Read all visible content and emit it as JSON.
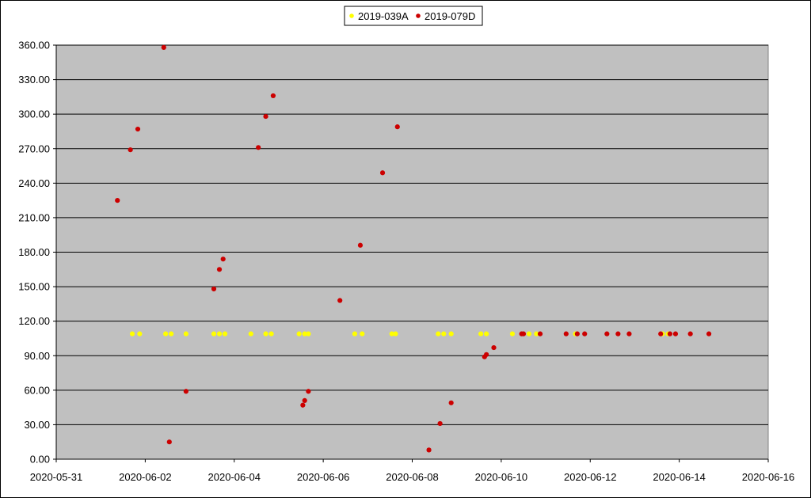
{
  "chart_data": {
    "type": "scatter",
    "title": "",
    "xlabel": "",
    "ylabel": "",
    "x_axis": {
      "min": "2020-05-31",
      "max": "2020-06-16",
      "tick_labels": [
        "2020-05-31",
        "2020-06-02",
        "2020-06-04",
        "2020-06-06",
        "2020-06-08",
        "2020-06-10",
        "2020-06-12",
        "2020-06-14",
        "2020-06-16"
      ]
    },
    "y_axis": {
      "min": 0,
      "max": 360,
      "tick_labels": [
        "0.00",
        "30.00",
        "60.00",
        "90.00",
        "120.00",
        "150.00",
        "180.00",
        "210.00",
        "240.00",
        "270.00",
        "300.00",
        "330.00",
        "360.00"
      ]
    },
    "grid": "horizontal",
    "plot_background": "#c0c0c0",
    "legend_position": "top-center",
    "series": [
      {
        "name": "2019-039A",
        "color": "#ffff00",
        "points": [
          {
            "x": "2020-06-01 17:00",
            "y": 109
          },
          {
            "x": "2020-06-01 21:00",
            "y": 109
          },
          {
            "x": "2020-06-02 11:00",
            "y": 109
          },
          {
            "x": "2020-06-02 14:00",
            "y": 109
          },
          {
            "x": "2020-06-02 22:00",
            "y": 109
          },
          {
            "x": "2020-06-03 13:00",
            "y": 109
          },
          {
            "x": "2020-06-03 16:00",
            "y": 109
          },
          {
            "x": "2020-06-03 19:00",
            "y": 109
          },
          {
            "x": "2020-06-04 09:00",
            "y": 109
          },
          {
            "x": "2020-06-04 17:00",
            "y": 109
          },
          {
            "x": "2020-06-04 20:00",
            "y": 109
          },
          {
            "x": "2020-06-05 11:00",
            "y": 109
          },
          {
            "x": "2020-06-05 14:00",
            "y": 109
          },
          {
            "x": "2020-06-05 16:00",
            "y": 109
          },
          {
            "x": "2020-06-06 17:00",
            "y": 109
          },
          {
            "x": "2020-06-06 21:00",
            "y": 109
          },
          {
            "x": "2020-06-07 13:00",
            "y": 109
          },
          {
            "x": "2020-06-07 15:00",
            "y": 109
          },
          {
            "x": "2020-06-08 14:00",
            "y": 109
          },
          {
            "x": "2020-06-08 17:00",
            "y": 109
          },
          {
            "x": "2020-06-08 21:00",
            "y": 109
          },
          {
            "x": "2020-06-09 13:00",
            "y": 109
          },
          {
            "x": "2020-06-09 16:00",
            "y": 109
          },
          {
            "x": "2020-06-10 06:00",
            "y": 109
          },
          {
            "x": "2020-06-10 15:00",
            "y": 109
          },
          {
            "x": "2020-06-10 19:00",
            "y": 109
          },
          {
            "x": "2020-06-11 16:00",
            "y": 109
          },
          {
            "x": "2020-06-13 15:00",
            "y": 109
          },
          {
            "x": "2020-06-13 18:00",
            "y": 109
          }
        ]
      },
      {
        "name": "2019-079D",
        "color": "#cc0000",
        "points": [
          {
            "x": "2020-06-01 09:00",
            "y": 225
          },
          {
            "x": "2020-06-01 16:00",
            "y": 269
          },
          {
            "x": "2020-06-01 20:00",
            "y": 287
          },
          {
            "x": "2020-06-02 10:00",
            "y": 358
          },
          {
            "x": "2020-06-02 13:00",
            "y": 15
          },
          {
            "x": "2020-06-02 22:00",
            "y": 59
          },
          {
            "x": "2020-06-03 13:00",
            "y": 148
          },
          {
            "x": "2020-06-03 16:00",
            "y": 165
          },
          {
            "x": "2020-06-03 18:00",
            "y": 174
          },
          {
            "x": "2020-06-04 13:00",
            "y": 271
          },
          {
            "x": "2020-06-04 17:00",
            "y": 298
          },
          {
            "x": "2020-06-04 21:00",
            "y": 316
          },
          {
            "x": "2020-06-05 13:00",
            "y": 47
          },
          {
            "x": "2020-06-05 14:00",
            "y": 51
          },
          {
            "x": "2020-06-05 16:00",
            "y": 59
          },
          {
            "x": "2020-06-06 09:00",
            "y": 138
          },
          {
            "x": "2020-06-06 20:00",
            "y": 186
          },
          {
            "x": "2020-06-07 08:00",
            "y": 249
          },
          {
            "x": "2020-06-07 16:00",
            "y": 289
          },
          {
            "x": "2020-06-08 09:00",
            "y": 8
          },
          {
            "x": "2020-06-08 15:00",
            "y": 31
          },
          {
            "x": "2020-06-08 21:00",
            "y": 49
          },
          {
            "x": "2020-06-09 15:00",
            "y": 89
          },
          {
            "x": "2020-06-09 16:00",
            "y": 91
          },
          {
            "x": "2020-06-09 20:00",
            "y": 97
          },
          {
            "x": "2020-06-10 11:00",
            "y": 109
          },
          {
            "x": "2020-06-10 12:00",
            "y": 109
          },
          {
            "x": "2020-06-10 21:00",
            "y": 109
          },
          {
            "x": "2020-06-11 11:00",
            "y": 109
          },
          {
            "x": "2020-06-11 17:00",
            "y": 109
          },
          {
            "x": "2020-06-11 21:00",
            "y": 109
          },
          {
            "x": "2020-06-12 09:00",
            "y": 109
          },
          {
            "x": "2020-06-12 15:00",
            "y": 109
          },
          {
            "x": "2020-06-12 21:00",
            "y": 109
          },
          {
            "x": "2020-06-13 14:00",
            "y": 109
          },
          {
            "x": "2020-06-13 19:00",
            "y": 109
          },
          {
            "x": "2020-06-13 22:00",
            "y": 109
          },
          {
            "x": "2020-06-14 06:00",
            "y": 109
          },
          {
            "x": "2020-06-14 16:00",
            "y": 109
          }
        ]
      }
    ]
  }
}
